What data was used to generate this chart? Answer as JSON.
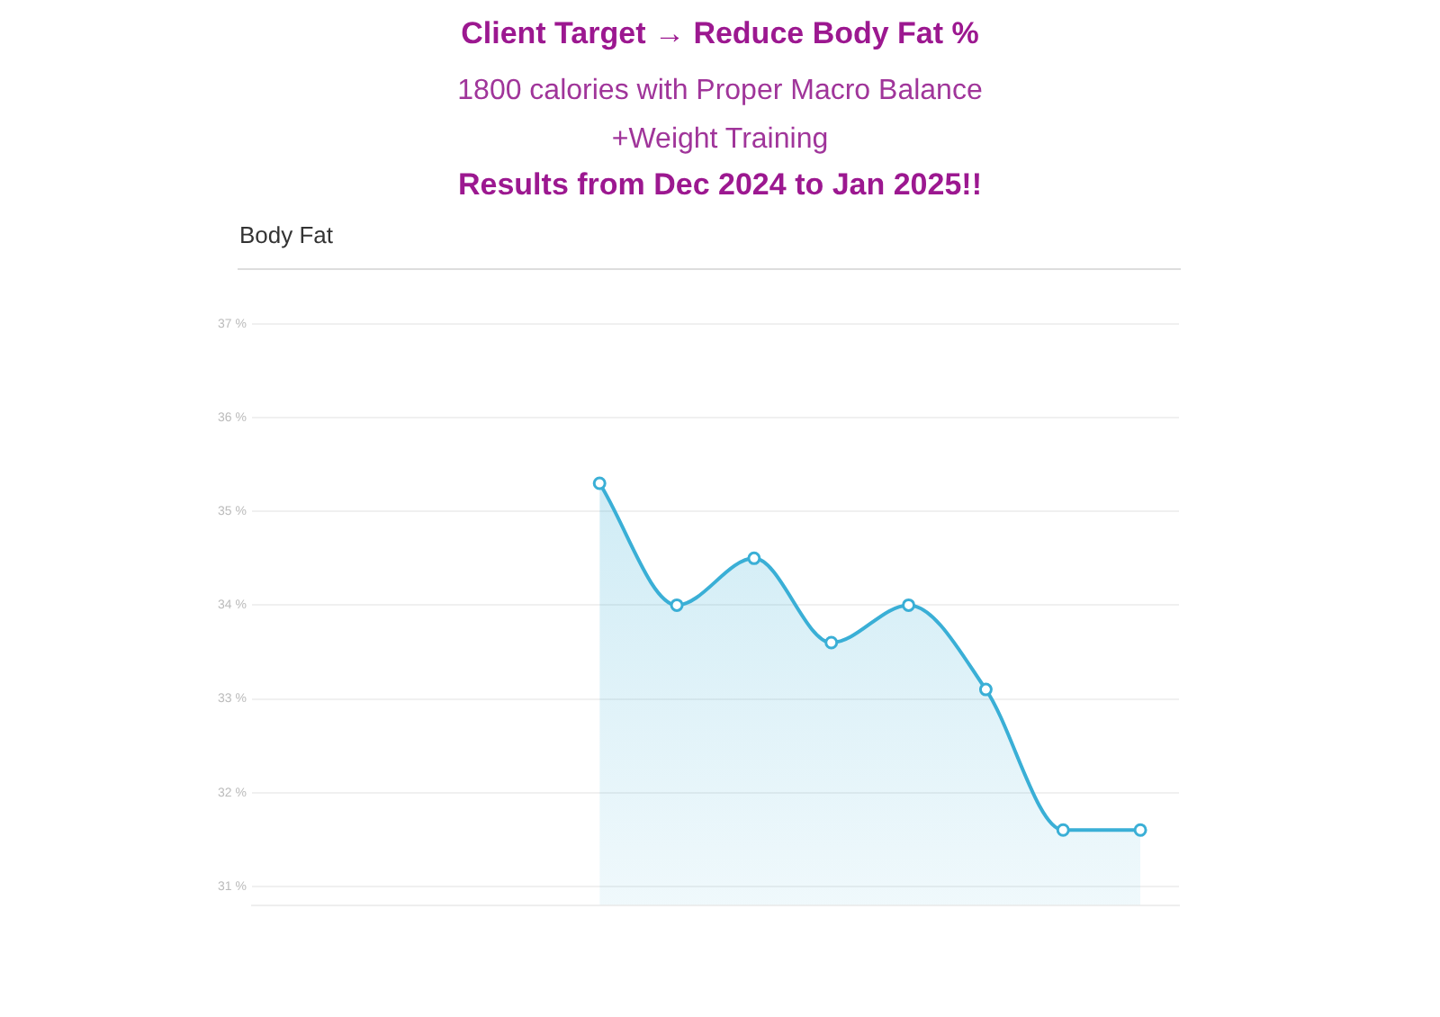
{
  "chart_data": {
    "type": "area",
    "title": "Client Target → Reduce Body Fat %",
    "subtitle": "1800 calories with Proper Macro Balance\n+Weight Training",
    "annotations": [
      "Results from Dec 2024 to Jan 2025!!",
      "Body Fat"
    ],
    "categories": [
      null,
      null,
      null,
      null,
      null,
      null,
      null,
      null,
      null,
      null,
      null,
      null
    ],
    "series": [
      {
        "color": "#3aafd6",
        "values": [
          null,
          null,
          null,
          null,
          35.3,
          34.0,
          34.5,
          33.6,
          34.0,
          33.1,
          31.6,
          31.6
        ]
      }
    ],
    "ylim": [
      30.8,
      37
    ],
    "yticks": [
      {
        "value": 31,
        "label": "31 %"
      },
      {
        "value": 32,
        "label": "32 %"
      },
      {
        "value": 33,
        "label": "33 %"
      },
      {
        "value": 34,
        "label": "34 %"
      },
      {
        "value": 35,
        "label": "35 %"
      },
      {
        "value": 36,
        "label": "36 %"
      },
      {
        "value": 37,
        "label": "37 %"
      }
    ],
    "grid": "y",
    "tick_labels": "y",
    "legend": false,
    "marker": "circle",
    "line_style": "solid"
  }
}
